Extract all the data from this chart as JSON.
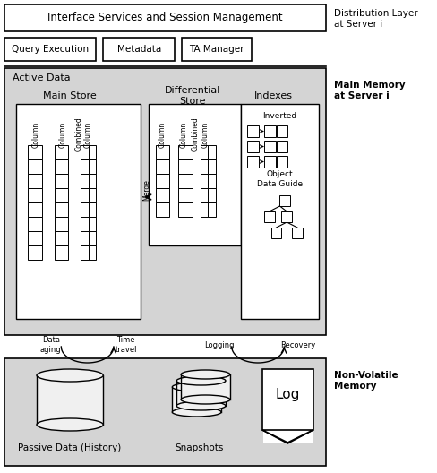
{
  "bg_color": "#ffffff",
  "gray_bg": "#cccccc",
  "title": "Interface Services and Session Management",
  "dist_layer_label": "Distribution Layer\nat Server i",
  "main_memory_label": "Main Memory\nat Server i",
  "nonvolatile_label": "Non-Volatile\nMemory",
  "query_execution": "Query Execution",
  "metadata": "Metadata",
  "ta_manager": "TA Manager",
  "active_data": "Active Data",
  "main_store": "Main Store",
  "differential_store": "Differential\nStore",
  "indexes": "Indexes",
  "inverted": "Inverted",
  "object_data_guide": "Object\nData Guide",
  "merge_label": "Merge",
  "data_aging": "Data\naging",
  "time_travel": "Time\ntravel",
  "logging": "Logging",
  "recovery": "Recovery",
  "passive_data": "Passive Data (History)",
  "snapshots": "Snapshots",
  "log_label": "Log",
  "col1": "Column",
  "col2": "Column",
  "col3": "Combined\nColumn",
  "figw": 4.88,
  "figh": 5.28,
  "dpi": 100
}
